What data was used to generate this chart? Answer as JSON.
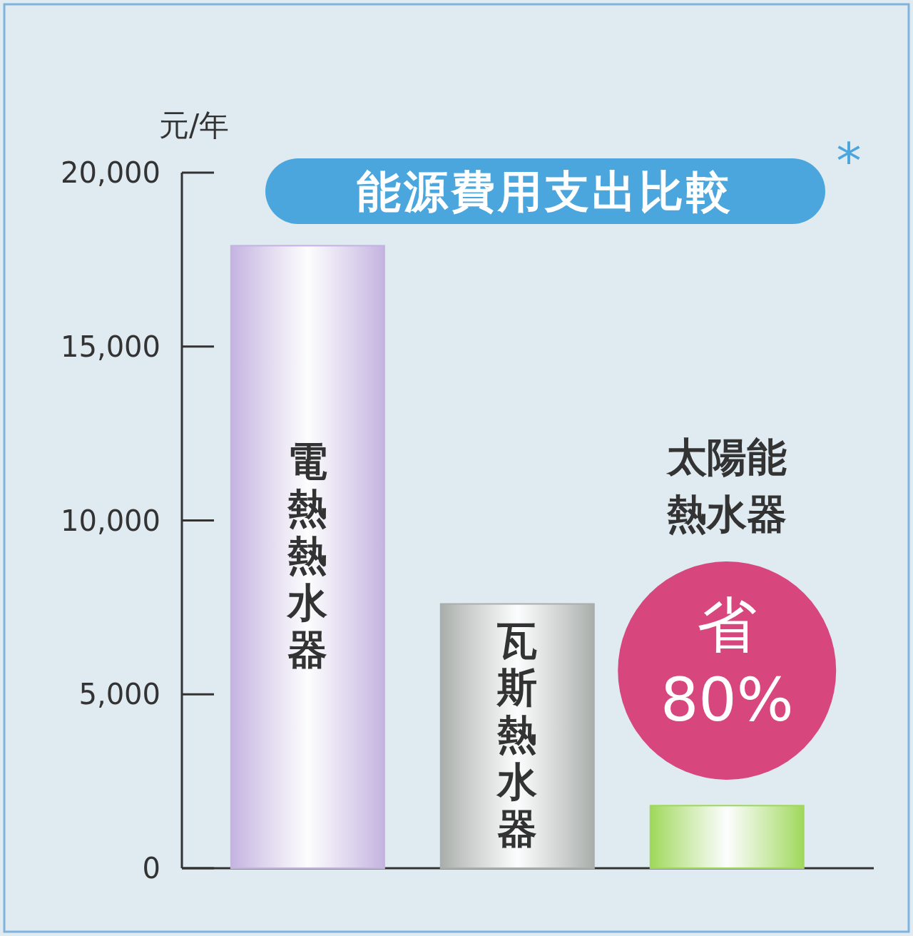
{
  "chart_data": {
    "type": "bar",
    "title": "能源費用支出比較",
    "ylabel": "元/年",
    "categories": [
      "電熱熱水器",
      "瓦斯熱水器",
      "太陽能熱水器"
    ],
    "values": [
      17900,
      7600,
      1800
    ],
    "colors": [
      "#c4b3e0",
      "#a9aeab",
      "#9fd85a"
    ],
    "ylim": [
      0,
      20000
    ],
    "yticks": [
      0,
      {
        "value": 5000,
        "label": "5,000"
      },
      {
        "value": 10000,
        "label": "10,000"
      },
      {
        "value": 15000,
        "label": "15,000"
      },
      {
        "value": 20000,
        "label": "20,000"
      }
    ],
    "annotations": [
      "省80%",
      "*"
    ],
    "grid": false
  }
}
